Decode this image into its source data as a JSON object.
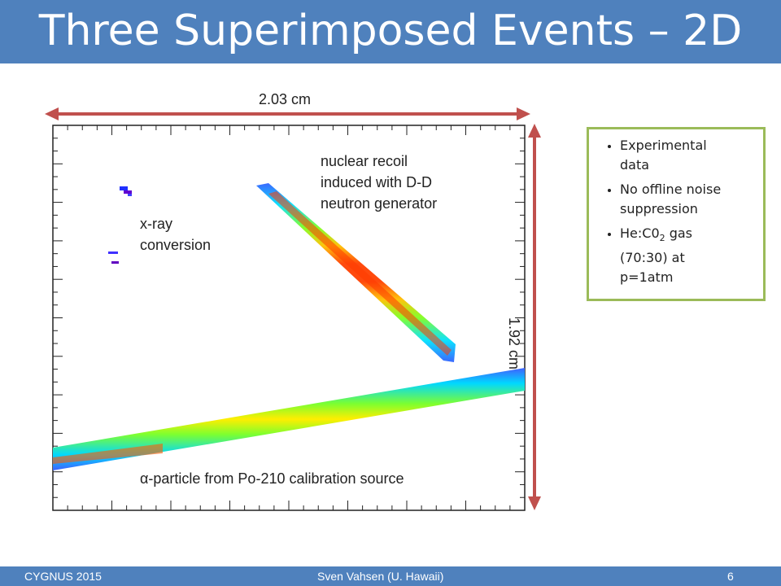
{
  "slide": {
    "title": "Three Superimposed Events – 2D"
  },
  "dimensions": {
    "width_label": "2.03 cm",
    "height_label": "1.92 cm"
  },
  "annotations": {
    "xray_line1": "x-ray",
    "xray_line2": "conversion",
    "recoil_line1": "nuclear recoil",
    "recoil_line2": "induced with D-D",
    "recoil_line3": "neutron generator",
    "alpha": "α-particle from Po-210 calibration source"
  },
  "notes": {
    "item1_line1": "Experimental",
    "item1_line2": "data",
    "item2_line1": "No offline noise",
    "item2_line2": "suppression",
    "item3_prefix": "He:C0",
    "item3_sub": "2",
    "item3_suffix": " gas",
    "item3_line2": "(70:30) at",
    "item3_line3": "p=1atm"
  },
  "footer": {
    "left": "CYGNUS 2015",
    "center": "Sven Vahsen (U. Hawaii)",
    "page": "6"
  },
  "colors": {
    "accent": "#4f81bd",
    "arrow": "#c0504d",
    "notes_border": "#9bbb59"
  }
}
